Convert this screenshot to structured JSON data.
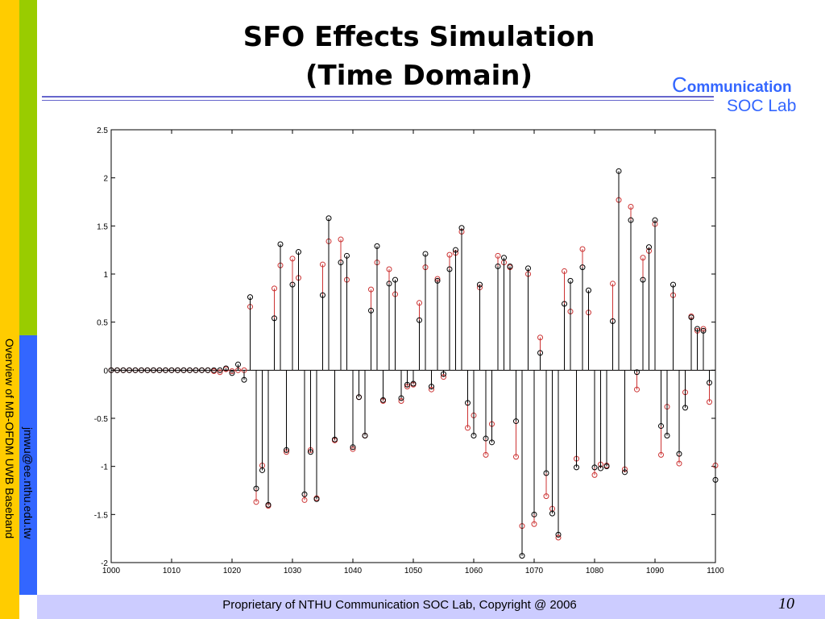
{
  "slide": {
    "title_line1": "SFO  Effects Simulation",
    "title_line2": "(Time Domain)",
    "logo_letter": "C",
    "logo_rest": "ommunication",
    "logo_line2": "SOC Lab",
    "side_text": "Overview of MB-OFDM UWB Baseband",
    "side_email": "jmwu@ee.nthu.edu.tw",
    "footer": "Proprietary of NTHU Communication SOC Lab, Copyright @ 2006",
    "page_number": "10",
    "colors": {
      "yellow_bar": "#ffcc00",
      "green_bar": "#99cc00",
      "blue_bar": "#3366ff",
      "footer_bg": "#ccccff",
      "logo": "#3366ff",
      "rule": "#6666cc"
    }
  },
  "chart_data": {
    "type": "scatter",
    "title": "",
    "xlabel": "",
    "ylabel": "",
    "xlim": [
      1000,
      1100
    ],
    "ylim": [
      -2,
      2.5
    ],
    "xticks": [
      1000,
      1010,
      1020,
      1030,
      1040,
      1050,
      1060,
      1070,
      1080,
      1090,
      1100
    ],
    "xtick_labels": [
      "1000",
      "1010",
      "1020",
      "1030",
      "1040",
      "1050",
      "1060",
      "1070",
      "1080",
      "1090",
      "1100"
    ],
    "yticks": [
      -2,
      -1.5,
      -1,
      -0.5,
      0,
      0.5,
      1,
      1.5,
      2,
      2.5
    ],
    "ytick_labels": [
      "-2",
      "-1.5",
      "-1",
      "-0.5",
      "0",
      "0.5",
      "1",
      "1.5",
      "2",
      "2.5"
    ],
    "grid": false,
    "legend": false,
    "series": [
      {
        "color": "#000000",
        "style": "stem",
        "x": [
          1000,
          1001,
          1002,
          1003,
          1004,
          1005,
          1006,
          1007,
          1008,
          1009,
          1010,
          1011,
          1012,
          1013,
          1014,
          1015,
          1016,
          1017,
          1018,
          1019,
          1020,
          1021,
          1022,
          1023,
          1024,
          1025,
          1026,
          1027,
          1028,
          1029,
          1030,
          1031,
          1032,
          1033,
          1034,
          1035,
          1036,
          1037,
          1038,
          1039,
          1040,
          1041,
          1042,
          1043,
          1044,
          1045,
          1046,
          1047,
          1048,
          1049,
          1050,
          1051,
          1052,
          1053,
          1054,
          1055,
          1056,
          1057,
          1058,
          1059,
          1060,
          1061,
          1062,
          1063,
          1064,
          1065,
          1066,
          1067,
          1068,
          1069,
          1070,
          1071,
          1072,
          1073,
          1074,
          1075,
          1076,
          1077,
          1078,
          1079,
          1080,
          1081,
          1082,
          1083,
          1084,
          1085,
          1086,
          1087,
          1088,
          1089,
          1090,
          1091,
          1092,
          1093,
          1094,
          1095,
          1096,
          1097,
          1098,
          1099,
          1100
        ],
        "y": [
          0,
          0,
          0,
          0,
          0,
          0,
          0,
          0,
          0,
          0,
          0,
          0,
          0,
          0,
          0,
          0,
          0,
          0,
          0,
          0.02,
          -0.03,
          0.06,
          -0.1,
          0.76,
          -1.23,
          -1.04,
          -1.4,
          0.54,
          1.31,
          -0.83,
          0.89,
          1.23,
          -1.29,
          -0.85,
          -1.34,
          0.78,
          1.58,
          -0.72,
          1.12,
          1.19,
          -0.8,
          -0.28,
          -0.68,
          0.62,
          1.29,
          -0.31,
          0.9,
          0.94,
          -0.29,
          -0.15,
          -0.14,
          0.52,
          1.21,
          -0.17,
          0.93,
          -0.04,
          1.05,
          1.25,
          1.48,
          -0.34,
          -0.68,
          0.89,
          -0.71,
          -0.75,
          1.08,
          1.17,
          1.08,
          -0.53,
          -1.93,
          1.06,
          -1.5,
          0.18,
          -1.07,
          -1.49,
          -1.71,
          0.69,
          0.93,
          -1.01,
          1.07,
          0.83,
          -1.01,
          -1.02,
          -1.0,
          0.51,
          2.07,
          -1.06,
          1.56,
          -0.02,
          0.94,
          1.28,
          1.56,
          -0.58,
          -0.68,
          0.89,
          -0.87,
          -0.39,
          0.55,
          0.43,
          0.41,
          -0.13,
          -1.14
        ]
      },
      {
        "color": "#cc3333",
        "style": "stem",
        "x": [
          1000,
          1001,
          1002,
          1003,
          1004,
          1005,
          1006,
          1007,
          1008,
          1009,
          1010,
          1011,
          1012,
          1013,
          1014,
          1015,
          1016,
          1017,
          1018,
          1019,
          1020,
          1021,
          1022,
          1023,
          1024,
          1025,
          1026,
          1027,
          1028,
          1029,
          1030,
          1031,
          1032,
          1033,
          1034,
          1035,
          1036,
          1037,
          1038,
          1039,
          1040,
          1041,
          1042,
          1043,
          1044,
          1045,
          1046,
          1047,
          1048,
          1049,
          1050,
          1051,
          1052,
          1053,
          1054,
          1055,
          1056,
          1057,
          1058,
          1059,
          1060,
          1061,
          1062,
          1063,
          1064,
          1065,
          1066,
          1067,
          1068,
          1069,
          1070,
          1071,
          1072,
          1073,
          1074,
          1075,
          1076,
          1077,
          1078,
          1079,
          1080,
          1081,
          1082,
          1083,
          1084,
          1085,
          1086,
          1087,
          1088,
          1089,
          1090,
          1091,
          1092,
          1093,
          1094,
          1095,
          1096,
          1097,
          1098,
          1099,
          1100
        ],
        "y": [
          0,
          0,
          0,
          0,
          0,
          0,
          0,
          0,
          0,
          0,
          0,
          0,
          0,
          0,
          0,
          0,
          0,
          -0.01,
          -0.02,
          0.01,
          -0.01,
          0.0,
          0.0,
          0.66,
          -1.37,
          -0.99,
          -1.41,
          0.85,
          1.09,
          -0.85,
          1.16,
          0.96,
          -1.35,
          -0.83,
          -1.33,
          1.1,
          1.34,
          -0.73,
          1.36,
          0.94,
          -0.82,
          -0.28,
          -0.68,
          0.84,
          1.12,
          -0.32,
          1.05,
          0.79,
          -0.32,
          -0.17,
          -0.15,
          0.7,
          1.07,
          -0.2,
          0.95,
          -0.07,
          1.2,
          1.22,
          1.44,
          -0.6,
          -0.47,
          0.86,
          -0.88,
          -0.56,
          1.19,
          1.12,
          1.07,
          -0.9,
          -1.62,
          1.0,
          -1.6,
          0.34,
          -1.31,
          -1.44,
          -1.74,
          1.03,
          0.61,
          -0.92,
          1.26,
          0.6,
          -1.09,
          -0.98,
          -0.99,
          0.9,
          1.77,
          -1.03,
          1.7,
          -0.2,
          1.17,
          1.24,
          1.52,
          -0.88,
          -0.38,
          0.78,
          -0.97,
          -0.23,
          0.56,
          0.41,
          0.43,
          -0.33,
          -0.99
        ]
      }
    ]
  }
}
